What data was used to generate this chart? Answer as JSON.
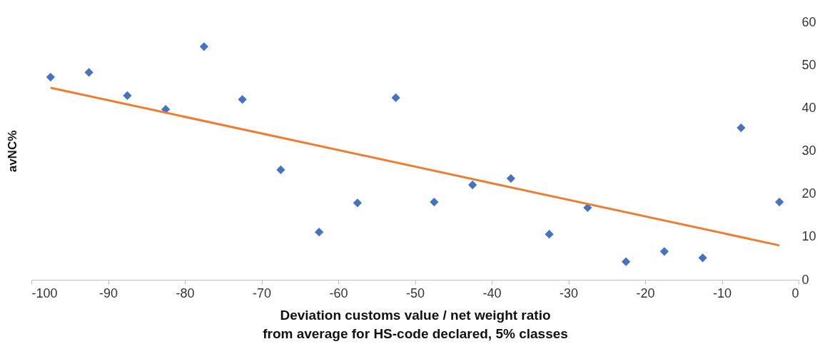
{
  "chart_data": {
    "type": "scatter",
    "xlabel": "Deviation customs value / net weight ratio\nfrom average for HS-code declared, 5% classes",
    "ylabel": "avNC%",
    "xlim": [
      -100,
      0
    ],
    "xticks": [
      -100,
      -90,
      -80,
      -70,
      -60,
      -50,
      -40,
      -30,
      -20,
      -10,
      0
    ],
    "ylim": [
      0,
      60
    ],
    "yticks": [
      0,
      10,
      20,
      30,
      40,
      50,
      60
    ],
    "x": [
      -97.5,
      -92.5,
      -87.5,
      -82.5,
      -77.5,
      -72.5,
      -67.5,
      -62.5,
      -57.5,
      -52.5,
      -47.5,
      -42.5,
      -37.5,
      -32.5,
      -27.5,
      -22.5,
      -17.5,
      -12.5,
      -7.5,
      -2.5
    ],
    "series": [
      {
        "color": "#4472c4",
        "marker": "diamond",
        "values": [
          47.2,
          48.3,
          42.9,
          39.7,
          54.3,
          42.0,
          25.6,
          11.1,
          17.9,
          42.4,
          18.1,
          22.1,
          23.6,
          10.6,
          16.8,
          4.2,
          6.6,
          5.1,
          35.4,
          18.1
        ]
      },
      {
        "type": "line",
        "marker": "none",
        "color": "#ed7d31",
        "x": [
          -97.5,
          -2.5
        ],
        "values": [
          44.7,
          8.0
        ]
      }
    ]
  }
}
